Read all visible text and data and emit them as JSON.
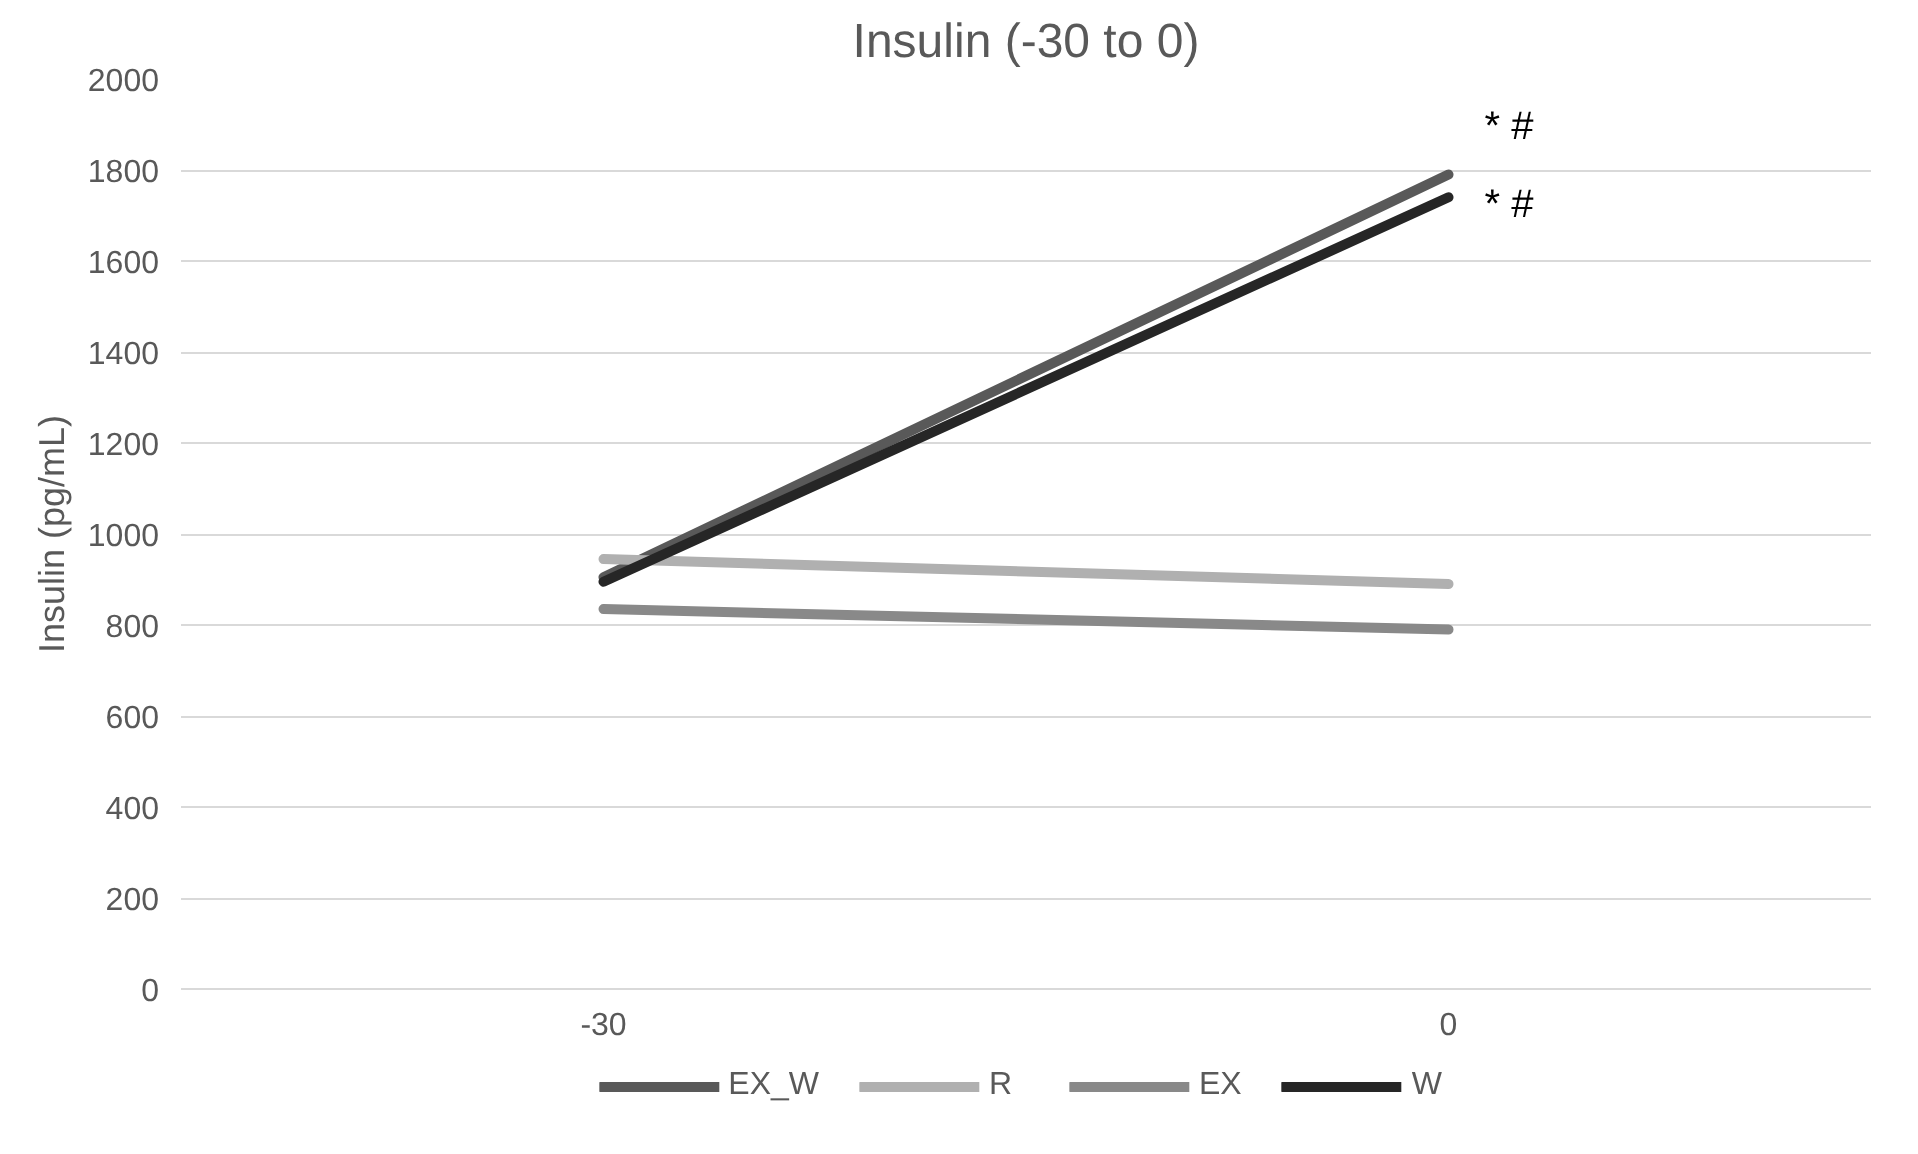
{
  "chart_data": {
    "type": "line",
    "title": "Insulin (-30 to 0)",
    "ylabel": "Insulin (pg/mL)",
    "categories": [
      "-30",
      "0"
    ],
    "series": [
      {
        "name": "EX_W",
        "color": "#595959",
        "values": [
          905,
          1790
        ]
      },
      {
        "name": "R",
        "color": "#b0b0b0",
        "values": [
          945,
          890
        ]
      },
      {
        "name": "EX",
        "color": "#898989",
        "values": [
          835,
          790
        ]
      },
      {
        "name": "W",
        "color": "#262626",
        "values": [
          895,
          1740
        ]
      }
    ],
    "ylim": [
      0,
      2000
    ],
    "yticks": [
      0,
      200,
      400,
      600,
      800,
      1000,
      1200,
      1400,
      1600,
      1800,
      2000
    ],
    "annotations": [
      {
        "text": "*  #",
        "x": "0",
        "y": 1790
      },
      {
        "text": "*  #",
        "x": "0",
        "y": 1740
      }
    ],
    "grid": "y",
    "legend": "bottom",
    "marker": "none",
    "line_style": "solid"
  }
}
